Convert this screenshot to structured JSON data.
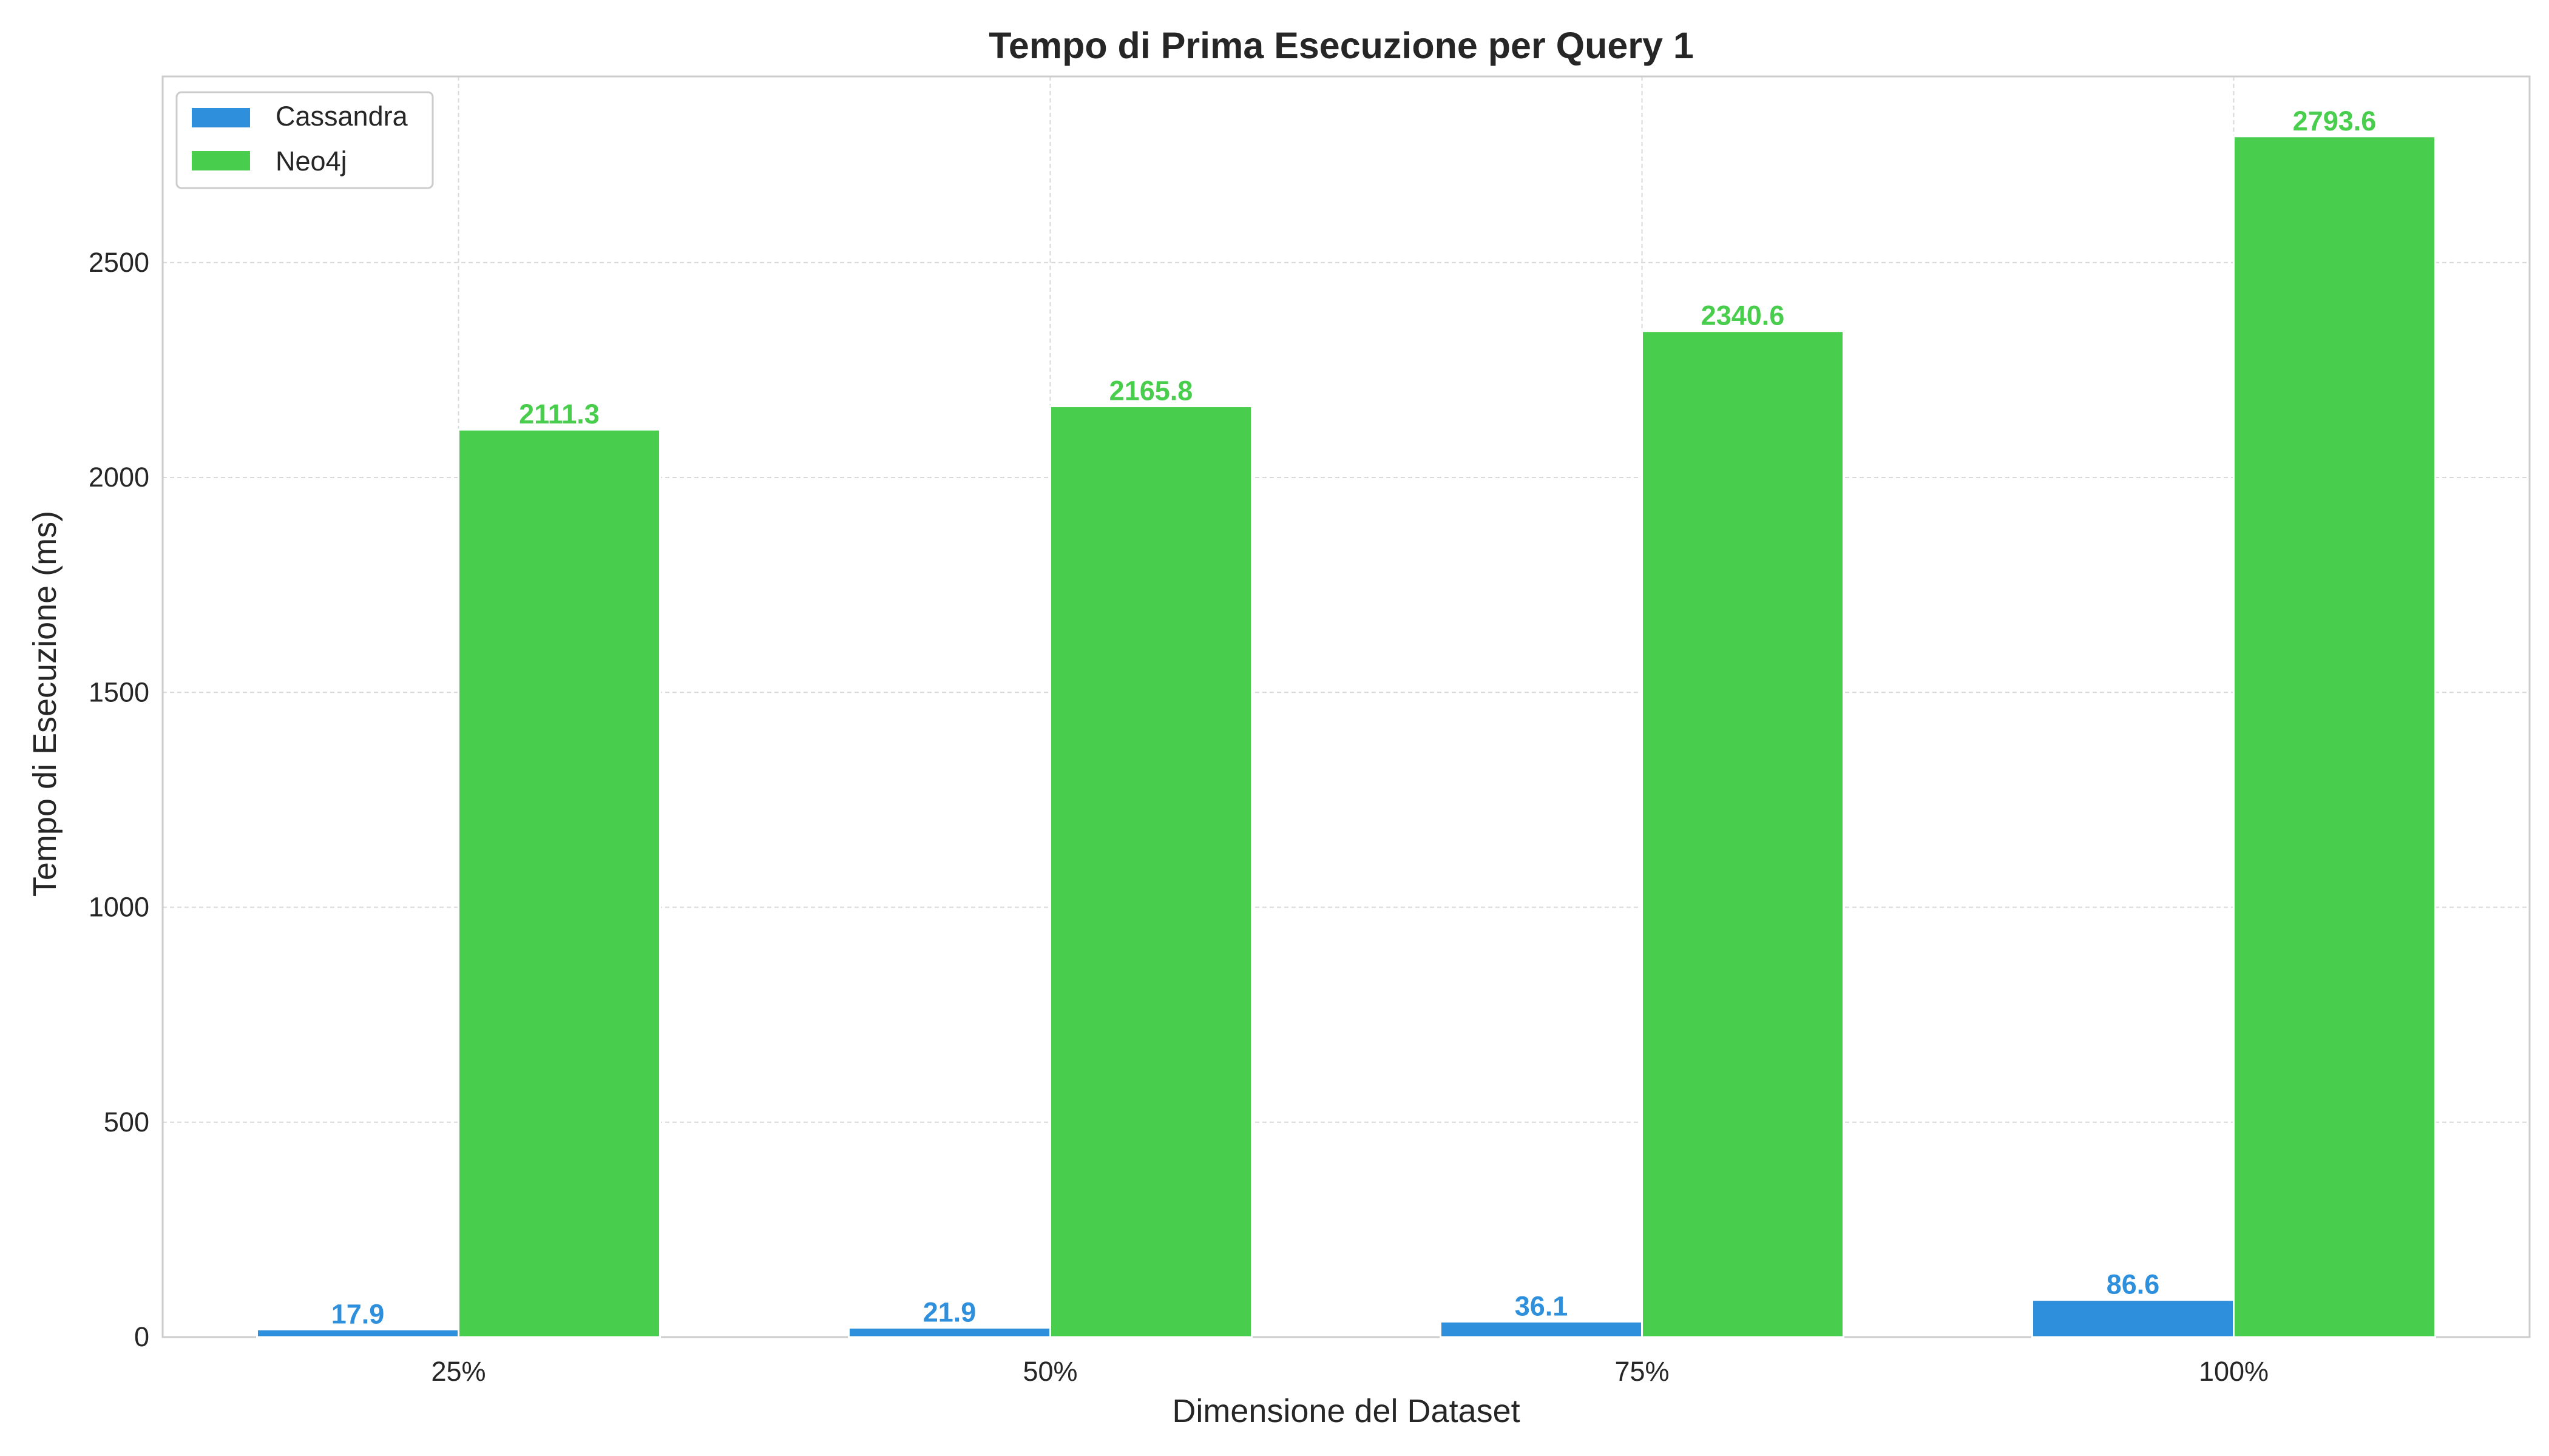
{
  "chart_data": {
    "type": "bar",
    "title": "Tempo di Prima Esecuzione per Query 1",
    "xlabel": "Dimensione del Dataset",
    "ylabel": "Tempo di Esecuzione (ms)",
    "categories": [
      "25%",
      "50%",
      "75%",
      "100%"
    ],
    "series": [
      {
        "name": "Cassandra",
        "color": "#2e90dc",
        "values": [
          17.9,
          21.9,
          36.1,
          86.6
        ]
      },
      {
        "name": "Neo4j",
        "color": "#49cd4c",
        "values": [
          2111.3,
          2165.8,
          2340.6,
          2793.6
        ]
      }
    ],
    "ylim": [
      0,
      2933
    ],
    "yticks": [
      0,
      500,
      1000,
      1500,
      2000,
      2500
    ],
    "grid": true,
    "legend": "top-left",
    "value_labels": true
  }
}
